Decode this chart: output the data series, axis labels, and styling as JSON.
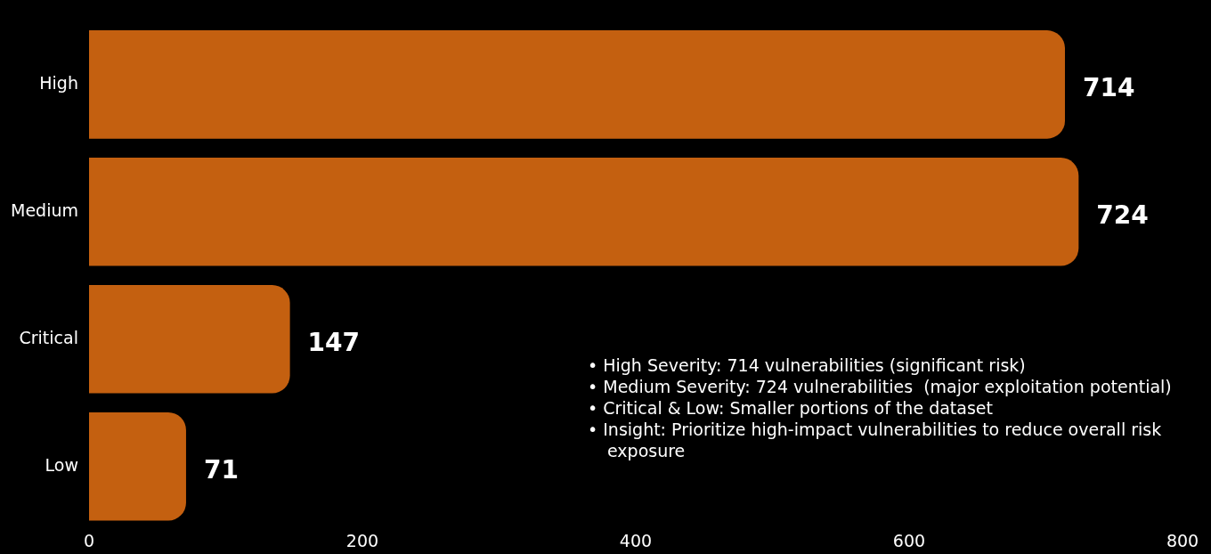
{
  "chart_data": {
    "type": "bar",
    "orientation": "horizontal",
    "categories": [
      "High",
      "Medium",
      "Critical",
      "Low"
    ],
    "values": [
      714,
      724,
      147,
      71
    ],
    "color": "#c46010",
    "xlim": [
      0,
      800
    ],
    "xticks": [
      0,
      200,
      400,
      600,
      800
    ],
    "grid": false,
    "legend": false,
    "data_labels": true,
    "annotations": [
      "• High Severity: 714 vulnerabilities (significant risk)",
      "• Medium Severity: 724 vulnerabilities  (major exploitation potential)",
      "• Critical & Low: Smaller portions of the dataset",
      "• Insight: Prioritize high-impact vulnerabilities to reduce overall risk exposure"
    ]
  }
}
